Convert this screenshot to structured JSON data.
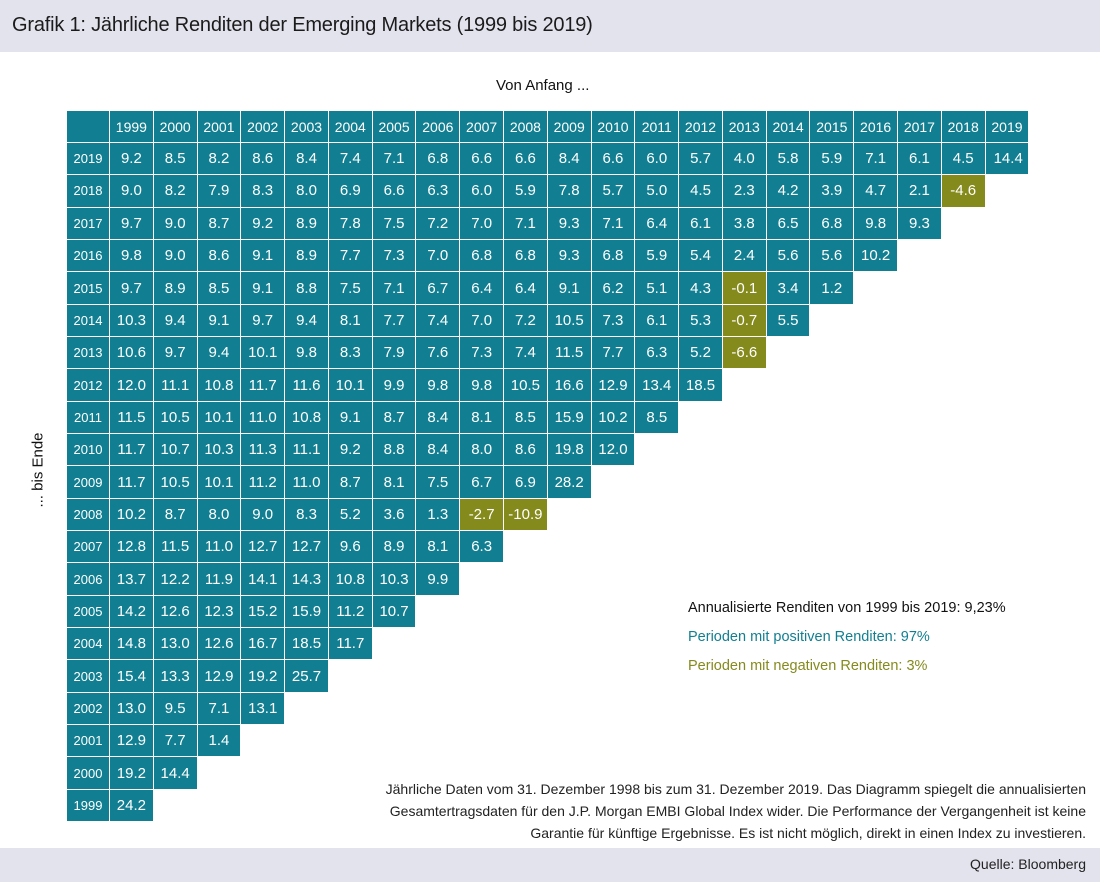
{
  "title": "Grafik 1: Jährliche Renditen der Emerging Markets (1999 bis 2019)",
  "source": "Quelle: Bloomberg",
  "colors": {
    "positive": "#117f91",
    "negative": "#858a1d",
    "band": "#e3e3ee"
  },
  "legend": {
    "total": "Annualisierte Renditen von 1999 bis 2019: 9,23%",
    "positive": "Perioden mit positiven Renditen: 97%",
    "negative": "Perioden mit negativen Renditen: 3%"
  },
  "note_lines": [
    "Jährliche Daten vom 31. Dezember 1998 bis zum 31. Dezember 2019. Das Diagramm spiegelt die annualisierten",
    "Gesamtertragsdaten für den J.P. Morgan EMBI Global Index wider. Die Performance der Vergangenheit ist keine",
    "Garantie für künftige Ergebnisse. Es ist nicht möglich, direkt in einen Index zu investieren."
  ],
  "chart_data": {
    "type": "table",
    "title": "Grafik 1: Jährliche Renditen der Emerging Markets (1999 bis 2019)",
    "xlabel": "Von Anfang ...",
    "ylabel": "... bis Ende",
    "columns": [
      "1999",
      "2000",
      "2001",
      "2002",
      "2003",
      "2004",
      "2005",
      "2006",
      "2007",
      "2008",
      "2009",
      "2010",
      "2011",
      "2012",
      "2013",
      "2014",
      "2015",
      "2016",
      "2017",
      "2018",
      "2019"
    ],
    "rows": [
      {
        "year": "2019",
        "values": [
          "9.2",
          "8.5",
          "8.2",
          "8.6",
          "8.4",
          "7.4",
          "7.1",
          "6.8",
          "6.6",
          "6.6",
          "8.4",
          "6.6",
          "6.0",
          "5.7",
          "4.0",
          "5.8",
          "5.9",
          "7.1",
          "6.1",
          "4.5",
          "14.4"
        ]
      },
      {
        "year": "2018",
        "values": [
          "9.0",
          "8.2",
          "7.9",
          "8.3",
          "8.0",
          "6.9",
          "6.6",
          "6.3",
          "6.0",
          "5.9",
          "7.8",
          "5.7",
          "5.0",
          "4.5",
          "2.3",
          "4.2",
          "3.9",
          "4.7",
          "2.1",
          "-4.6"
        ]
      },
      {
        "year": "2017",
        "values": [
          "9.7",
          "9.0",
          "8.7",
          "9.2",
          "8.9",
          "7.8",
          "7.5",
          "7.2",
          "7.0",
          "7.1",
          "9.3",
          "7.1",
          "6.4",
          "6.1",
          "3.8",
          "6.5",
          "6.8",
          "9.8",
          "9.3"
        ]
      },
      {
        "year": "2016",
        "values": [
          "9.8",
          "9.0",
          "8.6",
          "9.1",
          "8.9",
          "7.7",
          "7.3",
          "7.0",
          "6.8",
          "6.8",
          "9.3",
          "6.8",
          "5.9",
          "5.4",
          "2.4",
          "5.6",
          "5.6",
          "10.2"
        ]
      },
      {
        "year": "2015",
        "values": [
          "9.7",
          "8.9",
          "8.5",
          "9.1",
          "8.8",
          "7.5",
          "7.1",
          "6.7",
          "6.4",
          "6.4",
          "9.1",
          "6.2",
          "5.1",
          "4.3",
          "-0.1",
          "3.4",
          "1.2"
        ]
      },
      {
        "year": "2014",
        "values": [
          "10.3",
          "9.4",
          "9.1",
          "9.7",
          "9.4",
          "8.1",
          "7.7",
          "7.4",
          "7.0",
          "7.2",
          "10.5",
          "7.3",
          "6.1",
          "5.3",
          "-0.7",
          "5.5"
        ]
      },
      {
        "year": "2013",
        "values": [
          "10.6",
          "9.7",
          "9.4",
          "10.1",
          "9.8",
          "8.3",
          "7.9",
          "7.6",
          "7.3",
          "7.4",
          "11.5",
          "7.7",
          "6.3",
          "5.2",
          "-6.6"
        ]
      },
      {
        "year": "2012",
        "values": [
          "12.0",
          "11.1",
          "10.8",
          "11.7",
          "11.6",
          "10.1",
          "9.9",
          "9.8",
          "9.8",
          "10.5",
          "16.6",
          "12.9",
          "13.4",
          "18.5"
        ]
      },
      {
        "year": "2011",
        "values": [
          "11.5",
          "10.5",
          "10.1",
          "11.0",
          "10.8",
          "9.1",
          "8.7",
          "8.4",
          "8.1",
          "8.5",
          "15.9",
          "10.2",
          "8.5"
        ]
      },
      {
        "year": "2010",
        "values": [
          "11.7",
          "10.7",
          "10.3",
          "11.3",
          "11.1",
          "9.2",
          "8.8",
          "8.4",
          "8.0",
          "8.6",
          "19.8",
          "12.0"
        ]
      },
      {
        "year": "2009",
        "values": [
          "11.7",
          "10.5",
          "10.1",
          "11.2",
          "11.0",
          "8.7",
          "8.1",
          "7.5",
          "6.7",
          "6.9",
          "28.2"
        ]
      },
      {
        "year": "2008",
        "values": [
          "10.2",
          "8.7",
          "8.0",
          "9.0",
          "8.3",
          "5.2",
          "3.6",
          "1.3",
          "-2.7",
          "-10.9"
        ]
      },
      {
        "year": "2007",
        "values": [
          "12.8",
          "11.5",
          "11.0",
          "12.7",
          "12.7",
          "9.6",
          "8.9",
          "8.1",
          "6.3"
        ]
      },
      {
        "year": "2006",
        "values": [
          "13.7",
          "12.2",
          "11.9",
          "14.1",
          "14.3",
          "10.8",
          "10.3",
          "9.9"
        ]
      },
      {
        "year": "2005",
        "values": [
          "14.2",
          "12.6",
          "12.3",
          "15.2",
          "15.9",
          "11.2",
          "10.7"
        ]
      },
      {
        "year": "2004",
        "values": [
          "14.8",
          "13.0",
          "12.6",
          "16.7",
          "18.5",
          "11.7"
        ]
      },
      {
        "year": "2003",
        "values": [
          "15.4",
          "13.3",
          "12.9",
          "19.2",
          "25.7"
        ]
      },
      {
        "year": "2002",
        "values": [
          "13.0",
          "9.5",
          "7.1",
          "13.1"
        ]
      },
      {
        "year": "2001",
        "values": [
          "12.9",
          "7.7",
          "1.4"
        ]
      },
      {
        "year": "2000",
        "values": [
          "19.2",
          "14.4"
        ]
      },
      {
        "year": "1999",
        "values": [
          "24.2"
        ]
      }
    ]
  }
}
